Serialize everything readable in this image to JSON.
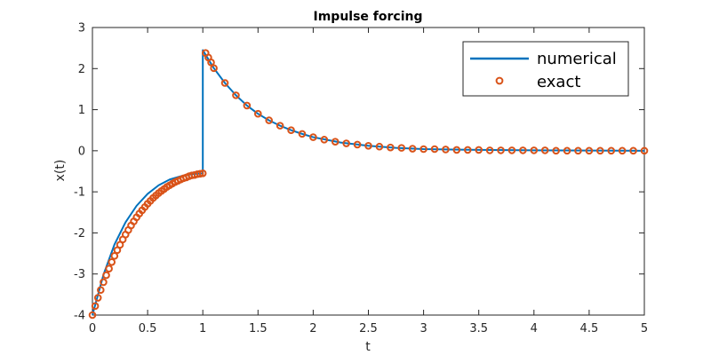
{
  "chart_data": {
    "type": "line",
    "title": "Impulse forcing",
    "xlabel": "t",
    "ylabel": "x(t)",
    "xlim": [
      0,
      5
    ],
    "ylim": [
      -4,
      3
    ],
    "xticks": [
      0,
      0.5,
      1,
      1.5,
      2,
      2.5,
      3,
      3.5,
      4,
      4.5,
      5
    ],
    "yticks": [
      -4,
      -3,
      -2,
      -1,
      0,
      1,
      2,
      3
    ],
    "xtick_labels": [
      "0",
      "0.5",
      "1",
      "1.5",
      "2",
      "2.5",
      "3",
      "3.5",
      "4",
      "4.5",
      "5"
    ],
    "ytick_labels": [
      "-4",
      "-3",
      "-2",
      "-1",
      "0",
      "1",
      "2",
      "3"
    ],
    "grid": false,
    "legend_position": "top-right",
    "series": [
      {
        "name": "numerical",
        "style": "line",
        "color": "#0072BD",
        "x": [
          0,
          0.1,
          0.2,
          0.3,
          0.4,
          0.5,
          0.6,
          0.7,
          0.8,
          0.9,
          1,
          1,
          1.1,
          1.2,
          1.3,
          1.4,
          1.5,
          1.6,
          1.7,
          1.8,
          1.9,
          2,
          2.25,
          2.5,
          2.75,
          3,
          3.5,
          4,
          4.5,
          5
        ],
        "y": [
          -4,
          -3.02,
          -2.28,
          -1.74,
          -1.34,
          -1.05,
          -0.84,
          -0.7,
          -0.62,
          -0.57,
          -0.55,
          2.45,
          2.01,
          1.65,
          1.35,
          1.1,
          0.9,
          0.74,
          0.61,
          0.5,
          0.41,
          0.33,
          0.2,
          0.12,
          0.07,
          0.04,
          0.02,
          0.01,
          0.005,
          0
        ]
      },
      {
        "name": "exact",
        "style": "markers",
        "color": "#D95319",
        "x": [
          0,
          0.025,
          0.05,
          0.075,
          0.1,
          0.125,
          0.15,
          0.175,
          0.2,
          0.225,
          0.25,
          0.275,
          0.3,
          0.325,
          0.35,
          0.375,
          0.4,
          0.425,
          0.45,
          0.475,
          0.5,
          0.525,
          0.55,
          0.575,
          0.6,
          0.625,
          0.65,
          0.675,
          0.7,
          0.725,
          0.75,
          0.775,
          0.8,
          0.825,
          0.85,
          0.875,
          0.9,
          0.925,
          0.95,
          0.975,
          1,
          1.025,
          1.05,
          1.075,
          1.1,
          1.2,
          1.3,
          1.4,
          1.5,
          1.6,
          1.7,
          1.8,
          1.9,
          2,
          2.1,
          2.2,
          2.3,
          2.4,
          2.5,
          2.6,
          2.7,
          2.8,
          2.9,
          3,
          3.1,
          3.2,
          3.3,
          3.4,
          3.5,
          3.6,
          3.7,
          3.8,
          3.9,
          4,
          4.1,
          4.2,
          4.3,
          4.4,
          4.5,
          4.6,
          4.7,
          4.8,
          4.9,
          5
        ],
        "y": [
          -4,
          -3.78,
          -3.58,
          -3.39,
          -3.2,
          -3.03,
          -2.87,
          -2.71,
          -2.56,
          -2.42,
          -2.29,
          -2.16,
          -2.04,
          -1.93,
          -1.82,
          -1.72,
          -1.62,
          -1.53,
          -1.45,
          -1.37,
          -1.29,
          -1.22,
          -1.15,
          -1.09,
          -1.03,
          -0.98,
          -0.93,
          -0.88,
          -0.84,
          -0.8,
          -0.76,
          -0.73,
          -0.7,
          -0.67,
          -0.65,
          -0.62,
          -0.6,
          -0.59,
          -0.57,
          -0.56,
          -0.55,
          2.38,
          2.27,
          2.15,
          2.01,
          1.65,
          1.35,
          1.1,
          0.9,
          0.74,
          0.61,
          0.5,
          0.41,
          0.33,
          0.27,
          0.22,
          0.18,
          0.15,
          0.12,
          0.1,
          0.08,
          0.07,
          0.05,
          0.04,
          0.04,
          0.03,
          0.02,
          0.02,
          0.02,
          0.01,
          0.01,
          0.01,
          0.01,
          0.01,
          0.01,
          0,
          0,
          0,
          0,
          0,
          0,
          0,
          0,
          0
        ]
      }
    ],
    "legend": {
      "entries": [
        "numerical",
        "exact"
      ]
    }
  }
}
